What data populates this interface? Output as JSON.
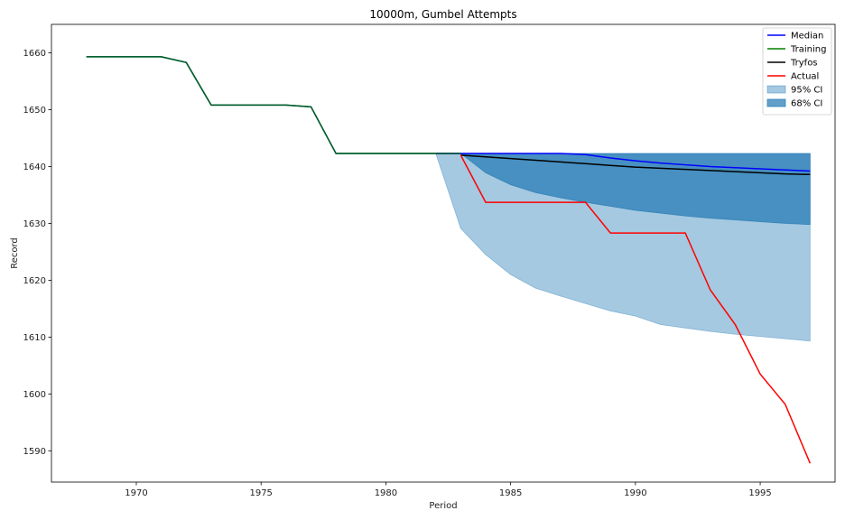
{
  "chart_data": {
    "type": "line",
    "title": "10000m, Gumbel Attempts",
    "xlabel": "Period",
    "ylabel": "Record",
    "xlim": [
      1966.6,
      1998.0
    ],
    "ylim": [
      1584.5,
      1665.0
    ],
    "xticks": [
      1970,
      1975,
      1980,
      1985,
      1990,
      1995
    ],
    "yticks": [
      1590,
      1600,
      1610,
      1620,
      1630,
      1640,
      1650,
      1660
    ],
    "grid": false,
    "legend_position": "top-right",
    "series": [
      {
        "name": "Median",
        "color": "#0000ff",
        "x": [
          1982,
          1983,
          1984,
          1985,
          1986,
          1987,
          1988,
          1989,
          1990,
          1991,
          1992,
          1993,
          1994,
          1995,
          1996,
          1997
        ],
        "y": [
          1642.3,
          1642.3,
          1642.3,
          1642.3,
          1642.3,
          1642.3,
          1642.1,
          1641.5,
          1641.0,
          1640.6,
          1640.3,
          1640.0,
          1639.8,
          1639.6,
          1639.4,
          1639.2
        ]
      },
      {
        "name": "Training",
        "color": "#008000",
        "x": [
          1968,
          1969,
          1970,
          1971,
          1972,
          1973,
          1974,
          1975,
          1976,
          1977,
          1978,
          1979,
          1980,
          1981,
          1982,
          1983
        ],
        "y": [
          1659.3,
          1659.3,
          1659.3,
          1659.3,
          1658.3,
          1650.8,
          1650.8,
          1650.8,
          1650.8,
          1650.5,
          1642.3,
          1642.3,
          1642.3,
          1642.3,
          1642.3,
          1642.3
        ]
      },
      {
        "name": "Tryfos",
        "color": "#000000",
        "x": [
          1983,
          1984,
          1985,
          1986,
          1987,
          1988,
          1989,
          1990,
          1991,
          1992,
          1993,
          1994,
          1995,
          1996,
          1997
        ],
        "y": [
          1642.0,
          1641.7,
          1641.4,
          1641.1,
          1640.8,
          1640.5,
          1640.2,
          1639.9,
          1639.7,
          1639.5,
          1639.3,
          1639.1,
          1638.9,
          1638.7,
          1638.6
        ]
      },
      {
        "name": "Actual",
        "color": "#ff0000",
        "x": [
          1983,
          1984,
          1985,
          1986,
          1987,
          1988,
          1989,
          1990,
          1991,
          1992,
          1993,
          1994,
          1995,
          1996,
          1997
        ],
        "y": [
          1642.0,
          1633.7,
          1633.7,
          1633.7,
          1633.7,
          1633.7,
          1628.3,
          1628.3,
          1628.3,
          1628.3,
          1618.3,
          1612.2,
          1603.5,
          1598.2,
          1587.8
        ]
      }
    ],
    "bands": [
      {
        "name": "95% CI",
        "color": "#1f77b4",
        "opacity": 0.4,
        "x": [
          1982,
          1983,
          1984,
          1985,
          1986,
          1987,
          1988,
          1989,
          1990,
          1991,
          1992,
          1993,
          1994,
          1995,
          1996,
          1997
        ],
        "upper": [
          1642.3,
          1642.3,
          1642.3,
          1642.3,
          1642.3,
          1642.3,
          1642.3,
          1642.3,
          1642.3,
          1642.3,
          1642.3,
          1642.3,
          1642.3,
          1642.3,
          1642.3,
          1642.3
        ],
        "lower": [
          1642.3,
          1629.1,
          1624.5,
          1621.0,
          1618.6,
          1617.2,
          1615.9,
          1614.6,
          1613.7,
          1612.2,
          1611.6,
          1611.0,
          1610.5,
          1610.1,
          1609.7,
          1609.3
        ]
      },
      {
        "name": "68% CI",
        "color": "#1f77b4",
        "opacity": 0.7,
        "x": [
          1982,
          1983,
          1984,
          1985,
          1986,
          1987,
          1988,
          1989,
          1990,
          1991,
          1992,
          1993,
          1994,
          1995,
          1996,
          1997
        ],
        "upper": [
          1642.3,
          1642.3,
          1642.3,
          1642.3,
          1642.3,
          1642.3,
          1642.3,
          1642.3,
          1642.3,
          1642.3,
          1642.3,
          1642.3,
          1642.3,
          1642.3,
          1642.3,
          1642.3
        ],
        "lower": [
          1642.3,
          1642.3,
          1638.9,
          1636.8,
          1635.4,
          1634.5,
          1633.7,
          1633.0,
          1632.3,
          1631.8,
          1631.3,
          1630.9,
          1630.6,
          1630.3,
          1630.0,
          1629.8
        ]
      }
    ]
  }
}
